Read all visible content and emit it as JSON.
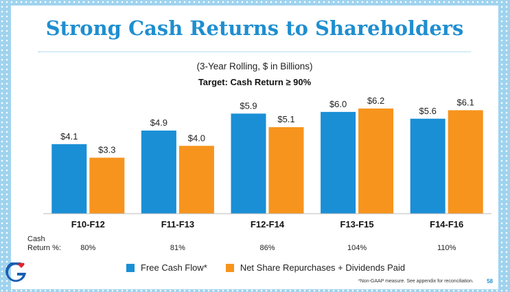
{
  "title": "Strong Cash Returns to Shareholders",
  "subtitle": "(3-Year Rolling, $ in Billions)",
  "target": "Target: Cash Return ≥ 90%",
  "cash_return_label_line1": "Cash",
  "cash_return_label_line2": "Return %:",
  "footnote": "*Non-GAAP measure. See appendix for reconciliation.",
  "page_number": "58",
  "colors": {
    "free_cash_flow": "#1a8fd6",
    "repurchases": "#f7941d",
    "title": "#1f8ed0"
  },
  "chart_data": {
    "type": "bar",
    "categories": [
      "F10-F12",
      "F11-F13",
      "F12-F14",
      "F13-F15",
      "F14-F16"
    ],
    "series": [
      {
        "name": "Free Cash Flow*",
        "values": [
          4.1,
          4.9,
          5.9,
          6.0,
          5.6
        ],
        "labels": [
          "$4.1",
          "$4.9",
          "$5.9",
          "$6.0",
          "$5.6"
        ]
      },
      {
        "name": "Net Share Repurchases + Dividends Paid",
        "values": [
          3.3,
          4.0,
          5.1,
          6.2,
          6.1
        ],
        "labels": [
          "$3.3",
          "$4.0",
          "$5.1",
          "$6.2",
          "$6.1"
        ]
      }
    ],
    "cash_return_pct": [
      "80%",
      "81%",
      "86%",
      "104%",
      "110%"
    ],
    "ylim": [
      0,
      6.4
    ]
  }
}
